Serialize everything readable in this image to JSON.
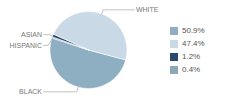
{
  "chart_data": {
    "type": "pie",
    "categories": [
      "BLACK",
      "WHITE",
      "ASIAN",
      "HISPANIC"
    ],
    "values": [
      50.9,
      47.4,
      1.2,
      0.4
    ],
    "value_labels": [
      "50.9%",
      "47.4%",
      "1.2%",
      "0.4%"
    ],
    "colors": [
      "#8eafc2",
      "#c9d9e5",
      "#2a4a6b",
      "#8fa8b8"
    ],
    "data_labels": true
  }
}
